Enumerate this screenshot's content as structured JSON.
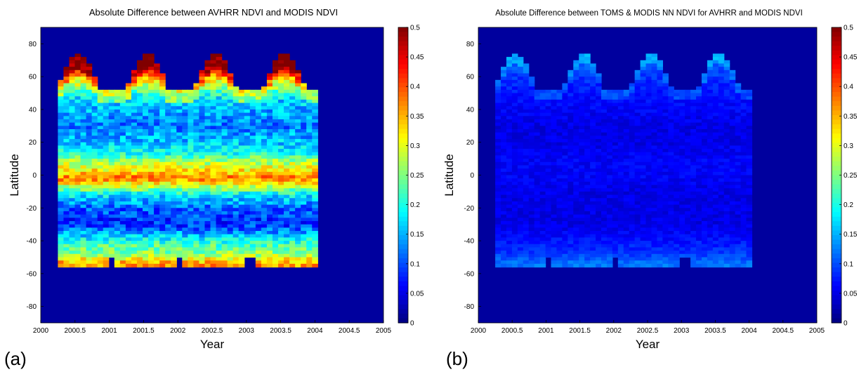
{
  "chart_data": [
    {
      "type": "heatmap",
      "panel_label": "(a)",
      "title": "Absolute Difference between AVHRR NDVI and MODIS NDVI",
      "xlabel": "Year",
      "ylabel": "Latitude",
      "xlim": [
        2000,
        2005
      ],
      "ylim": [
        -90,
        90
      ],
      "x_ticks": [
        "2000",
        "2000.5",
        "2001",
        "2001.5",
        "2002",
        "2002.5",
        "2003",
        "2003.5",
        "2004",
        "2004.5",
        "2005"
      ],
      "y_ticks": [
        "80",
        "60",
        "40",
        "20",
        "0",
        "-20",
        "-40",
        "-60",
        "-80"
      ],
      "colorbar_ticks": [
        "0.5",
        "0.45",
        "0.4",
        "0.35",
        "0.3",
        "0.25",
        "0.2",
        "0.15",
        "0.1",
        "0.05",
        "0"
      ],
      "colorbar_range": [
        0,
        0.5
      ],
      "colormap": "jet",
      "data_extent": {
        "x": [
          2000.25,
          2004.04
        ],
        "lat": [
          -56,
          76
        ]
      },
      "intensity": "high",
      "lat_profile": [
        {
          "lat": 72,
          "value": 0.44
        },
        {
          "lat": 64,
          "value": 0.42
        },
        {
          "lat": 58,
          "value": 0.32
        },
        {
          "lat": 52,
          "value": 0.24
        },
        {
          "lat": 46,
          "value": 0.17
        },
        {
          "lat": 40,
          "value": 0.15
        },
        {
          "lat": 30,
          "value": 0.12
        },
        {
          "lat": 20,
          "value": 0.16
        },
        {
          "lat": 14,
          "value": 0.19
        },
        {
          "lat": 8,
          "value": 0.27
        },
        {
          "lat": 2,
          "value": 0.33
        },
        {
          "lat": -2,
          "value": 0.38
        },
        {
          "lat": -6,
          "value": 0.3
        },
        {
          "lat": -12,
          "value": 0.18
        },
        {
          "lat": -20,
          "value": 0.11
        },
        {
          "lat": -30,
          "value": 0.08
        },
        {
          "lat": -36,
          "value": 0.15
        },
        {
          "lat": -42,
          "value": 0.22
        },
        {
          "lat": -48,
          "value": 0.26
        },
        {
          "lat": -54,
          "value": 0.36
        }
      ]
    },
    {
      "type": "heatmap",
      "panel_label": "(b)",
      "title": "Absolute Difference between TOMS & MODIS NN NDVI for AVHRR and MODIS NDVI",
      "xlabel": "Year",
      "ylabel": "Latitude",
      "xlim": [
        2000,
        2005
      ],
      "ylim": [
        -90,
        90
      ],
      "x_ticks": [
        "2000",
        "2000.5",
        "2001",
        "2001.5",
        "2002",
        "2002.5",
        "2003",
        "2003.5",
        "2004",
        "2004.5",
        "2005"
      ],
      "y_ticks": [
        "80",
        "60",
        "40",
        "20",
        "0",
        "-20",
        "-40",
        "-60",
        "-80"
      ],
      "colorbar_ticks": [
        "0.5",
        "0.45",
        "0.4",
        "0.35",
        "0.3",
        "0.25",
        "0.2",
        "0.15",
        "0.1",
        "0.05",
        "0"
      ],
      "colorbar_range": [
        0,
        0.5
      ],
      "colormap": "jet",
      "data_extent": {
        "x": [
          2000.25,
          2004.04
        ],
        "lat": [
          -56,
          76
        ]
      },
      "intensity": "low",
      "lat_profile": [
        {
          "lat": 72,
          "value": 0.12
        },
        {
          "lat": 64,
          "value": 0.1
        },
        {
          "lat": 56,
          "value": 0.08
        },
        {
          "lat": 48,
          "value": 0.07
        },
        {
          "lat": 40,
          "value": 0.06
        },
        {
          "lat": 30,
          "value": 0.05
        },
        {
          "lat": 20,
          "value": 0.05
        },
        {
          "lat": 10,
          "value": 0.06
        },
        {
          "lat": 0,
          "value": 0.06
        },
        {
          "lat": -10,
          "value": 0.05
        },
        {
          "lat": -20,
          "value": 0.05
        },
        {
          "lat": -30,
          "value": 0.05
        },
        {
          "lat": -40,
          "value": 0.07
        },
        {
          "lat": -48,
          "value": 0.09
        },
        {
          "lat": -54,
          "value": 0.12
        }
      ]
    }
  ]
}
